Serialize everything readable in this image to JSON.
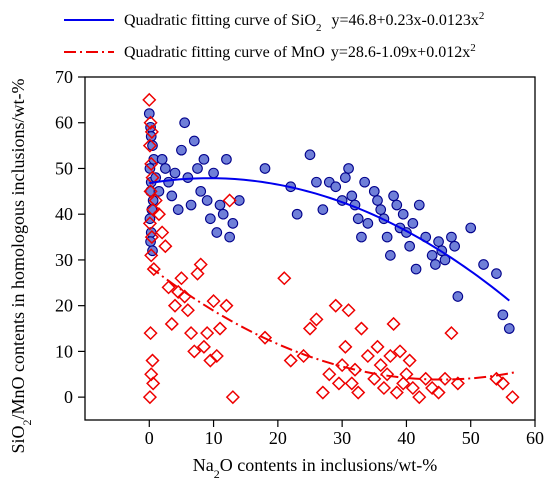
{
  "chart_data": {
    "type": "scatter",
    "xlabel_main": "Na",
    "xlabel_sub": "2",
    "xlabel_rest": "O contents in inclusions/wt-%",
    "ylabel_main": "SiO",
    "ylabel_sub": "2",
    "ylabel_rest": "/MnO contents in homologous inclusions/wt-%",
    "xlim": [
      -10,
      60
    ],
    "ylim": [
      -5,
      70
    ],
    "xticks": [
      0,
      10,
      20,
      30,
      40,
      50,
      60
    ],
    "yticks": [
      0,
      10,
      20,
      30,
      40,
      50,
      60,
      70
    ],
    "legend": [
      {
        "name": "Quadratic fitting curve of SiO",
        "name_sub": "2",
        "equation": "y=46.8+0.23x-0.0123x",
        "equation_sup": "2",
        "color": "#0000ee",
        "line": "solid"
      },
      {
        "name": "Quadratic fitting curve of MnO",
        "name_sub": "",
        "equation": "y=28.6-1.09x+0.012x",
        "equation_sup": "2",
        "color": "#ee0000",
        "line": "dashdot"
      }
    ],
    "series": [
      {
        "marker": "circle",
        "color": "#00008b",
        "fill": "#6f7fd8",
        "fit": {
          "a": 46.8,
          "b": 0.23,
          "c": -0.0123,
          "x_range": [
            0,
            56
          ]
        },
        "points": [
          [
            0,
            62
          ],
          [
            0.2,
            59
          ],
          [
            0.3,
            57
          ],
          [
            0.5,
            55
          ],
          [
            0.7,
            52
          ],
          [
            0.1,
            50
          ],
          [
            0.3,
            47
          ],
          [
            0.2,
            45
          ],
          [
            0.6,
            43
          ],
          [
            0.4,
            41
          ],
          [
            0.1,
            39
          ],
          [
            0.3,
            36
          ],
          [
            0.2,
            34
          ],
          [
            0.5,
            32
          ],
          [
            1,
            48
          ],
          [
            1.5,
            45
          ],
          [
            2,
            52
          ],
          [
            2.5,
            50
          ],
          [
            3,
            47
          ],
          [
            3.5,
            44
          ],
          [
            4,
            49
          ],
          [
            4.5,
            41
          ],
          [
            5,
            54
          ],
          [
            5.5,
            60
          ],
          [
            6,
            48
          ],
          [
            6.5,
            42
          ],
          [
            7,
            56
          ],
          [
            7.5,
            50
          ],
          [
            8,
            45
          ],
          [
            8.5,
            52
          ],
          [
            9,
            43
          ],
          [
            9.5,
            39
          ],
          [
            10,
            49
          ],
          [
            10.5,
            36
          ],
          [
            11,
            42
          ],
          [
            11.5,
            40
          ],
          [
            12,
            52
          ],
          [
            12.5,
            35
          ],
          [
            13,
            38
          ],
          [
            14,
            43
          ],
          [
            18,
            50
          ],
          [
            22,
            46
          ],
          [
            23,
            40
          ],
          [
            25,
            53
          ],
          [
            26,
            47
          ],
          [
            27,
            41
          ],
          [
            28,
            47
          ],
          [
            29,
            46
          ],
          [
            30,
            43
          ],
          [
            30.5,
            48
          ],
          [
            31,
            50
          ],
          [
            31.5,
            44
          ],
          [
            32,
            42
          ],
          [
            32.5,
            39
          ],
          [
            33,
            35
          ],
          [
            33.5,
            47
          ],
          [
            34,
            38
          ],
          [
            35,
            45
          ],
          [
            35.5,
            43
          ],
          [
            36,
            41
          ],
          [
            36.5,
            39
          ],
          [
            37,
            35
          ],
          [
            37.5,
            31
          ],
          [
            38,
            44
          ],
          [
            38.5,
            42
          ],
          [
            39,
            37
          ],
          [
            39.5,
            40
          ],
          [
            40,
            36
          ],
          [
            40.5,
            33
          ],
          [
            41,
            38
          ],
          [
            41.5,
            28
          ],
          [
            42,
            42
          ],
          [
            43,
            35
          ],
          [
            44,
            31
          ],
          [
            44.5,
            29
          ],
          [
            45,
            34
          ],
          [
            45.5,
            32
          ],
          [
            46,
            30
          ],
          [
            47,
            35
          ],
          [
            47.5,
            33
          ],
          [
            48,
            22
          ],
          [
            54,
            27
          ],
          [
            55,
            18
          ],
          [
            56,
            15
          ],
          [
            50,
            37
          ],
          [
            52,
            29
          ]
        ]
      },
      {
        "marker": "diamond",
        "color": "#ee0000",
        "fit": {
          "a": 28.6,
          "b": -1.09,
          "c": 0.012,
          "x_range": [
            0,
            57
          ]
        },
        "points": [
          [
            0,
            65
          ],
          [
            0.2,
            60
          ],
          [
            0.4,
            58
          ],
          [
            0.1,
            55
          ],
          [
            0.3,
            51
          ],
          [
            0.5,
            48
          ],
          [
            0.2,
            45
          ],
          [
            0.6,
            41
          ],
          [
            0.1,
            38
          ],
          [
            0.4,
            35
          ],
          [
            0.3,
            31
          ],
          [
            0.7,
            28
          ],
          [
            0.2,
            14
          ],
          [
            0.5,
            8
          ],
          [
            0.3,
            5
          ],
          [
            0.6,
            3
          ],
          [
            0.1,
            0
          ],
          [
            1,
            43
          ],
          [
            1.5,
            40
          ],
          [
            2,
            36
          ],
          [
            2.5,
            33
          ],
          [
            3,
            24
          ],
          [
            3.5,
            16
          ],
          [
            4,
            20
          ],
          [
            4.5,
            23
          ],
          [
            5,
            26
          ],
          [
            5.5,
            22
          ],
          [
            6,
            19
          ],
          [
            6.5,
            14
          ],
          [
            7,
            10
          ],
          [
            7.5,
            27
          ],
          [
            8,
            29
          ],
          [
            8.5,
            11
          ],
          [
            9,
            14
          ],
          [
            9.5,
            8
          ],
          [
            10,
            21
          ],
          [
            10.5,
            9
          ],
          [
            11,
            15
          ],
          [
            12,
            20
          ],
          [
            12.5,
            43
          ],
          [
            13,
            0
          ],
          [
            18,
            13
          ],
          [
            21,
            26
          ],
          [
            22,
            8
          ],
          [
            24,
            9
          ],
          [
            25,
            15
          ],
          [
            26,
            17
          ],
          [
            27,
            1
          ],
          [
            28,
            5
          ],
          [
            29,
            20
          ],
          [
            29.5,
            3
          ],
          [
            30,
            7
          ],
          [
            30.5,
            11
          ],
          [
            31,
            19
          ],
          [
            31.5,
            3
          ],
          [
            32,
            6
          ],
          [
            32.5,
            1
          ],
          [
            33,
            15
          ],
          [
            34,
            9
          ],
          [
            35,
            4
          ],
          [
            35.5,
            11
          ],
          [
            36,
            7
          ],
          [
            36.5,
            2
          ],
          [
            37,
            5
          ],
          [
            37.5,
            9
          ],
          [
            38,
            16
          ],
          [
            38.5,
            1
          ],
          [
            39,
            10
          ],
          [
            39.5,
            3
          ],
          [
            40,
            5
          ],
          [
            40.5,
            8
          ],
          [
            41,
            2
          ],
          [
            42,
            0
          ],
          [
            43,
            4
          ],
          [
            44,
            2
          ],
          [
            45,
            1
          ],
          [
            46,
            4
          ],
          [
            47,
            14
          ],
          [
            48,
            3
          ],
          [
            54,
            4
          ],
          [
            55,
            3
          ],
          [
            56.5,
            0
          ]
        ]
      }
    ]
  }
}
